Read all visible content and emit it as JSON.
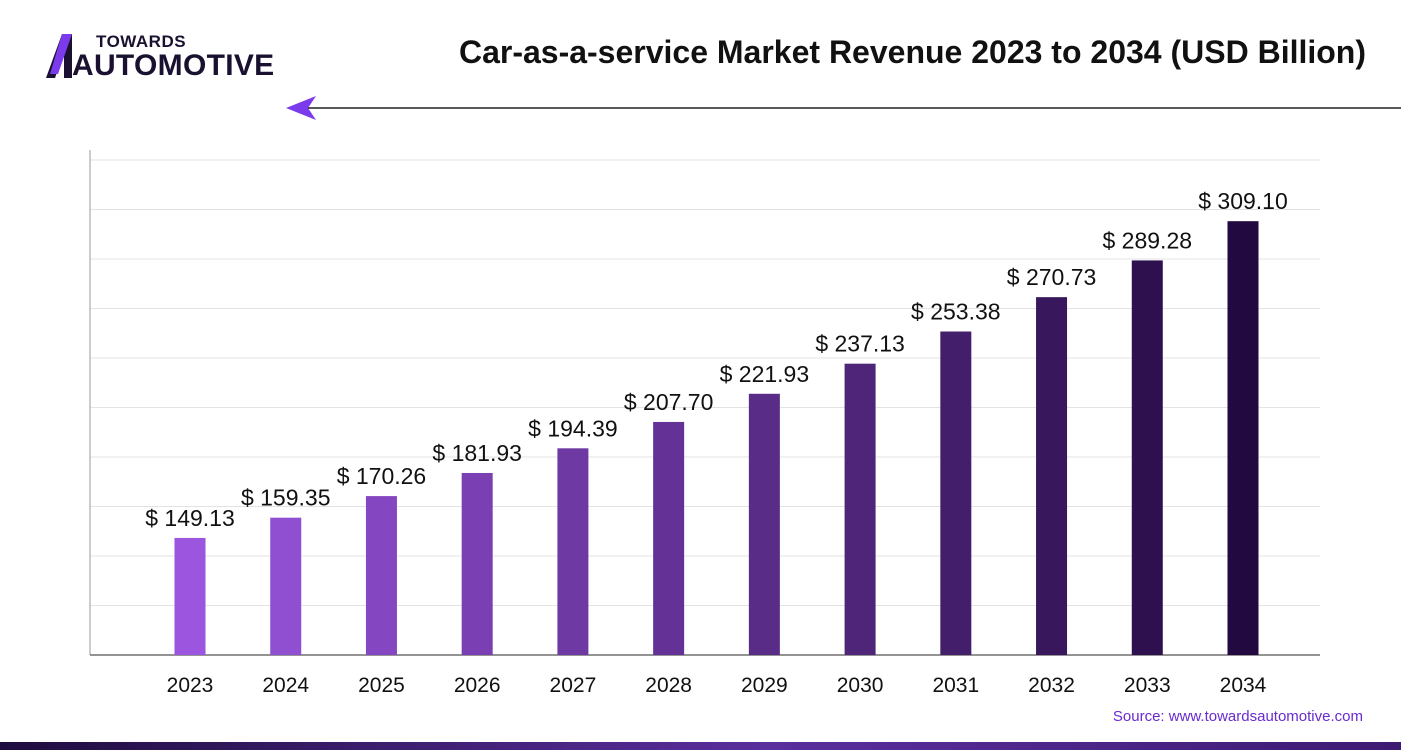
{
  "brand": {
    "line1": "TOWARDS",
    "line2": "AUTOMOTIVE",
    "accent_color": "#7c3aed",
    "dark_color": "#1a1030"
  },
  "source": "Source: www.towardsautomotive.com",
  "chart_data": {
    "type": "bar",
    "title": "Car-as-a-service Market Revenue 2023 to 2034 (USD Billion)",
    "xlabel": "",
    "ylabel": "",
    "categories": [
      "2023",
      "2024",
      "2025",
      "2026",
      "2027",
      "2028",
      "2029",
      "2030",
      "2031",
      "2032",
      "2033",
      "2034"
    ],
    "values": [
      149.13,
      159.35,
      170.26,
      181.93,
      194.39,
      207.7,
      221.93,
      237.13,
      253.38,
      270.73,
      289.28,
      309.1
    ],
    "value_labels": [
      "$ 149.13",
      "$ 159.35",
      "$ 170.26",
      "$ 181.93",
      "$ 194.39",
      "$ 207.70",
      "$ 221.93",
      "$ 237.13",
      "$ 253.38",
      "$ 270.73",
      "$ 289.28",
      "$ 309.10"
    ],
    "ylim": [
      90,
      340
    ],
    "grid": true,
    "legend": "none",
    "bar_color_start": "#9b55de",
    "bar_color_end": "#22093f"
  }
}
